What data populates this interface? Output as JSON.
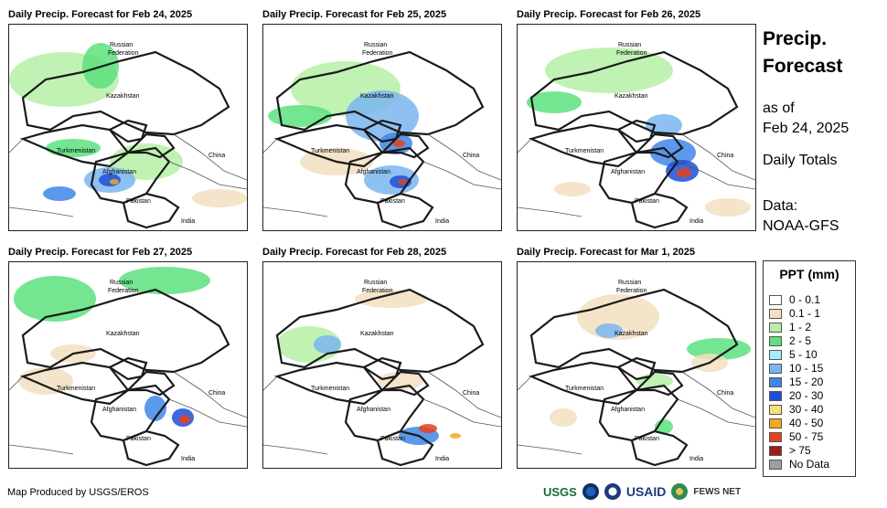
{
  "panels": [
    {
      "title": "Daily Precip. Forecast for Feb 24, 2025"
    },
    {
      "title": "Daily Precip. Forecast for Feb 25, 2025"
    },
    {
      "title": "Daily Precip. Forecast for Feb 26, 2025"
    },
    {
      "title": "Daily Precip. Forecast for Feb 27, 2025"
    },
    {
      "title": "Daily Precip. Forecast for Feb 28, 2025"
    },
    {
      "title": "Daily Precip. Forecast for Mar 1, 2025"
    }
  ],
  "map_labels": {
    "russia_1": "Russian",
    "russia_2": "Federation",
    "kazakhstan": "Kazakhstan",
    "turkmenistan": "Turkmenistan",
    "afghanistan": "Afghanistan",
    "pakistan": "Pakistan",
    "china": "China",
    "india": "India"
  },
  "side": {
    "title_line1": "Precip.",
    "title_line2": "Forecast",
    "asof_line1": "as of",
    "asof_line2": "Feb 24, 2025",
    "daily": "Daily Totals",
    "data_line1": "Data:",
    "data_line2": "NOAA-GFS"
  },
  "legend": {
    "title": "PPT (mm)",
    "items": [
      {
        "label": "0 - 0.1",
        "color": "#ffffff"
      },
      {
        "label": "0.1 - 1",
        "color": "#f2dfc0"
      },
      {
        "label": "1 - 2",
        "color": "#b5f0a6"
      },
      {
        "label": "2 - 5",
        "color": "#5ce07c"
      },
      {
        "label": "5 - 10",
        "color": "#a8ecf7"
      },
      {
        "label": "10 - 15",
        "color": "#7ab6ee"
      },
      {
        "label": "15 - 20",
        "color": "#3f86e8"
      },
      {
        "label": "20 - 30",
        "color": "#1c4fd6"
      },
      {
        "label": "30 - 40",
        "color": "#f7e07a"
      },
      {
        "label": "40 - 50",
        "color": "#f5a623"
      },
      {
        "label": "50 - 75",
        "color": "#e8401c"
      },
      {
        "label": "> 75",
        "color": "#a01b1b"
      },
      {
        "label": "No Data",
        "color": "#9e9e9e"
      }
    ]
  },
  "footer": {
    "credit": "Map Produced by USGS/EROS"
  },
  "logos": {
    "usgs": "USGS",
    "usaid": "USAID",
    "fews": "FEWS NET"
  }
}
